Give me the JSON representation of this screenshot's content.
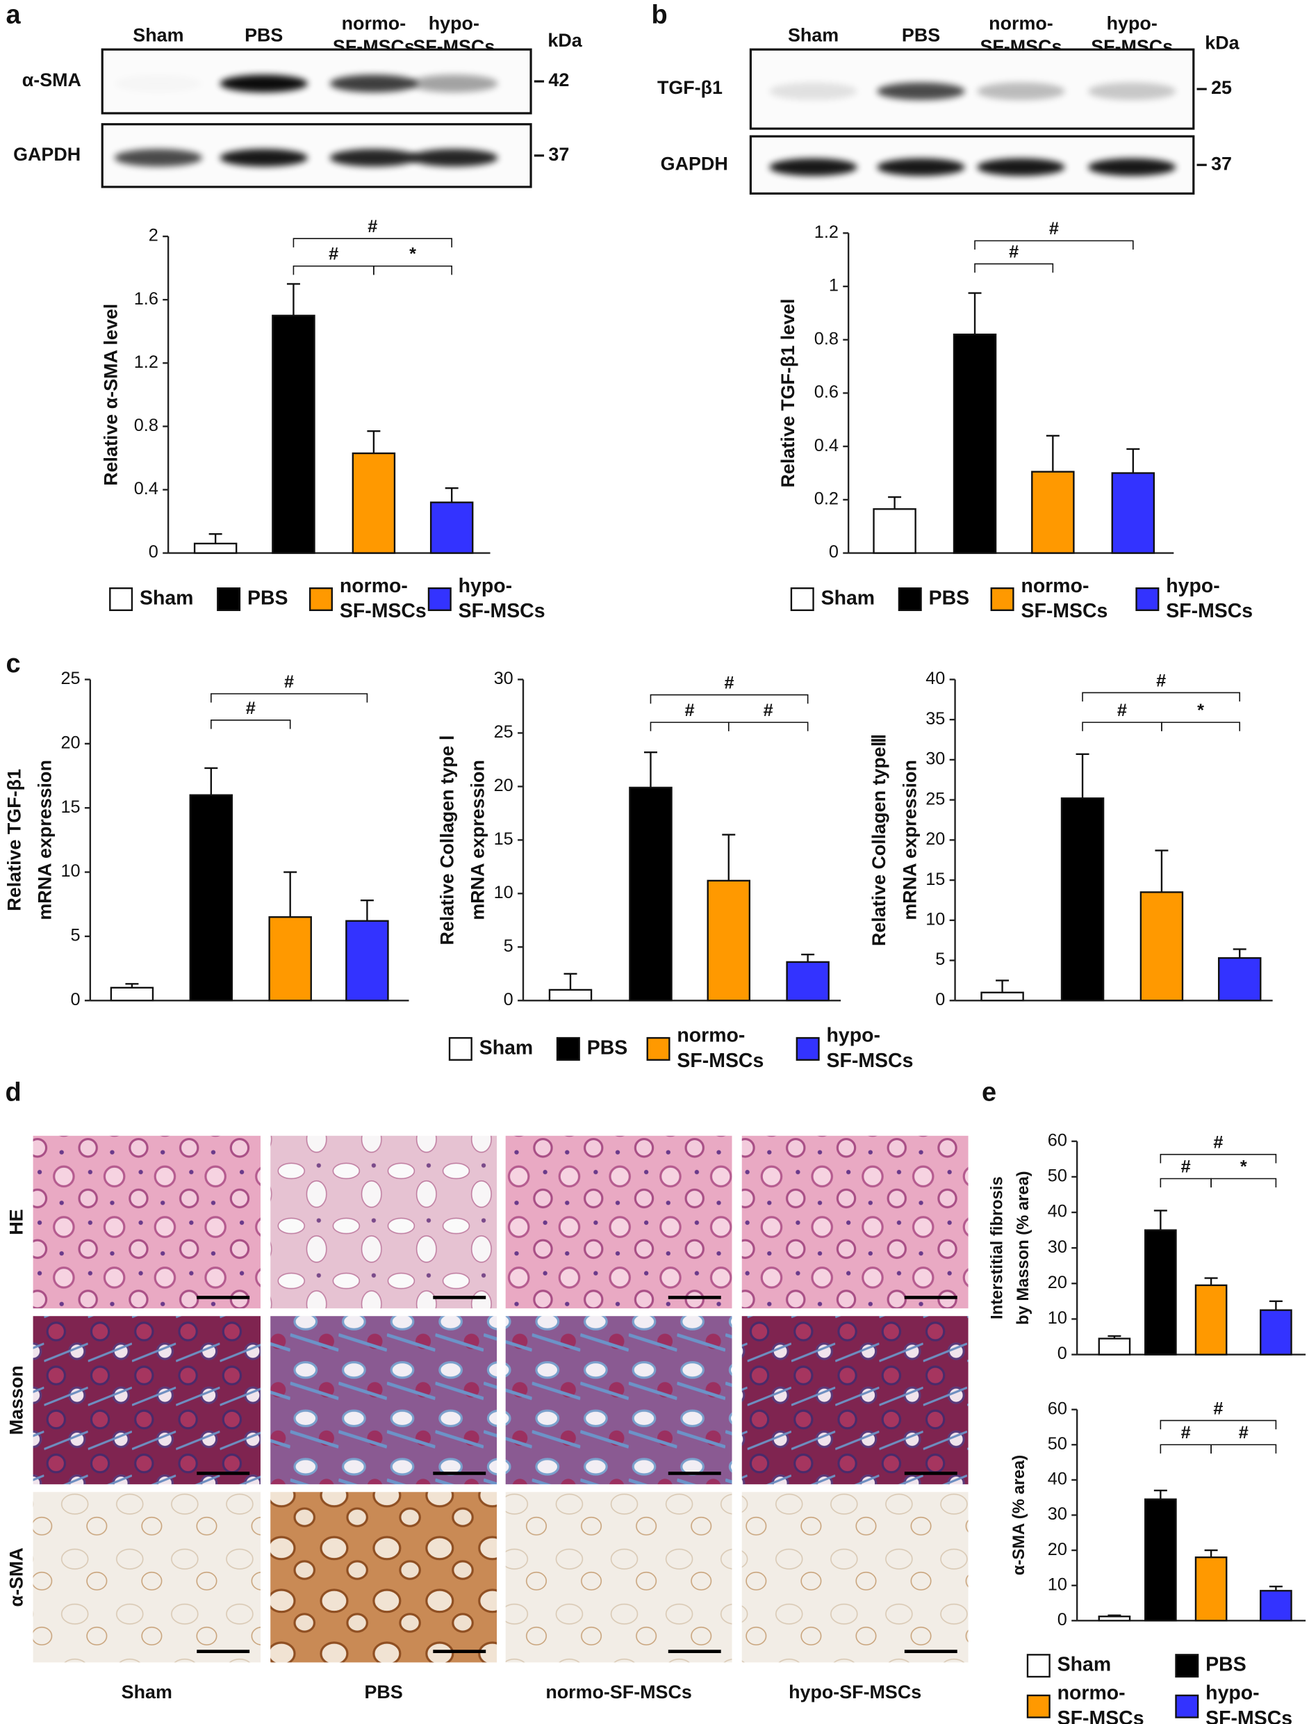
{
  "panel_labels": [
    "a",
    "b",
    "c",
    "d",
    "e"
  ],
  "blots": [
    {
      "lanes": [
        "Sham",
        "PBS",
        "normo-\nSF-MSCs",
        "hypo-\nSF-MSCs"
      ],
      "unit": "kDa",
      "rows": [
        {
          "label": "α-SMA",
          "size": 42
        },
        {
          "label": "GAPDH",
          "size": 37
        }
      ]
    },
    {
      "lanes": [
        "Sham",
        "PBS",
        "normo-\nSF-MSCs",
        "hypo-\nSF-MSCs"
      ],
      "unit": "kDa",
      "rows": [
        {
          "label": "TGF-β1",
          "size": 25
        },
        {
          "label": "GAPDH",
          "size": 37
        }
      ]
    }
  ],
  "histology": {
    "rows": [
      "HE",
      "Masson",
      "α-SMA"
    ],
    "columns": [
      "Sham",
      "PBS",
      "normo-SF-MSCs",
      "hypo-SF-MSCs"
    ]
  },
  "chart_data": [
    {
      "type": "bar",
      "ylabel": "Relative α-SMA level",
      "ylim": [
        0,
        2
      ],
      "yticks": [
        0,
        0.4,
        0.8,
        1.2,
        1.6,
        2
      ],
      "series": [
        {
          "name": "Sham",
          "color": "#ffffff",
          "values": [
            0.06
          ],
          "errors": [
            0.06
          ]
        },
        {
          "name": "PBS",
          "color": "#000000",
          "values": [
            1.5
          ],
          "errors": [
            0.2
          ]
        },
        {
          "name": "normo-\nSF-MSCs",
          "color": "#ff9900",
          "values": [
            0.63
          ],
          "errors": [
            0.14
          ]
        },
        {
          "name": "hypo-\nSF-MSCs",
          "color": "#3333ff",
          "values": [
            0.32
          ],
          "errors": [
            0.09
          ]
        }
      ],
      "annotations": [
        "#",
        "#",
        "*"
      ]
    },
    {
      "type": "bar",
      "ylabel": "Relative TGF-β1 level",
      "ylim": [
        0,
        1.2
      ],
      "yticks": [
        0,
        0.2,
        0.4,
        0.6,
        0.8,
        1,
        1.2
      ],
      "series": [
        {
          "name": "Sham",
          "color": "#ffffff",
          "values": [
            0.165
          ],
          "errors": [
            0.045
          ]
        },
        {
          "name": "PBS",
          "color": "#000000",
          "values": [
            0.82
          ],
          "errors": [
            0.155
          ]
        },
        {
          "name": "normo-\nSF-MSCs",
          "color": "#ff9900",
          "values": [
            0.305
          ],
          "errors": [
            0.135
          ]
        },
        {
          "name": "hypo-\nSF-MSCs",
          "color": "#3333ff",
          "values": [
            0.3
          ],
          "errors": [
            0.09
          ]
        }
      ],
      "annotations": [
        "#",
        "#"
      ]
    },
    {
      "type": "bar",
      "ylabel": "Relative TGF-β1\nmRNA expression",
      "ylim": [
        0,
        25
      ],
      "yticks": [
        0,
        5,
        10,
        15,
        20,
        25
      ],
      "series": [
        {
          "color": "#ffffff",
          "values": [
            1.0
          ],
          "errors": [
            0.3
          ]
        },
        {
          "color": "#000000",
          "values": [
            16.0
          ],
          "errors": [
            2.1
          ]
        },
        {
          "color": "#ff9900",
          "values": [
            6.5
          ],
          "errors": [
            3.5
          ]
        },
        {
          "color": "#3333ff",
          "values": [
            6.2
          ],
          "errors": [
            1.6
          ]
        }
      ],
      "annotations": [
        "#",
        "#"
      ]
    },
    {
      "type": "bar",
      "ylabel": "Relative Collagen type Ⅰ\nmRNA expression",
      "ylim": [
        0,
        30
      ],
      "yticks": [
        0,
        5,
        10,
        15,
        20,
        25,
        30
      ],
      "series": [
        {
          "name": "Sham",
          "color": "#ffffff",
          "values": [
            1.0
          ],
          "errors": [
            1.5
          ]
        },
        {
          "name": "PBS",
          "color": "#000000",
          "values": [
            19.9
          ],
          "errors": [
            3.3
          ]
        },
        {
          "name": "normo-\nSF-MSCs",
          "color": "#ff9900",
          "values": [
            11.2
          ],
          "errors": [
            4.3
          ]
        },
        {
          "name": "hypo-\nSF-MSCs",
          "color": "#3333ff",
          "values": [
            3.6
          ],
          "errors": [
            0.7
          ]
        }
      ],
      "annotations": [
        "#",
        "#",
        "#"
      ]
    },
    {
      "type": "bar",
      "ylabel": "Relative Collagen typeⅢ\nmRNA expression",
      "ylim": [
        0,
        40
      ],
      "yticks": [
        0,
        5,
        10,
        15,
        20,
        25,
        30,
        35,
        40
      ],
      "series": [
        {
          "color": "#ffffff",
          "values": [
            1.0
          ],
          "errors": [
            1.5
          ]
        },
        {
          "color": "#000000",
          "values": [
            25.2
          ],
          "errors": [
            5.5
          ]
        },
        {
          "color": "#ff9900",
          "values": [
            13.5
          ],
          "errors": [
            5.2
          ]
        },
        {
          "color": "#3333ff",
          "values": [
            5.3
          ],
          "errors": [
            1.1
          ]
        }
      ],
      "annotations": [
        "#",
        "#",
        "*"
      ]
    },
    {
      "type": "bar",
      "ylabel": "Interstitial fibrosis\nby Masson (% area)",
      "ylim": [
        0,
        60
      ],
      "yticks": [
        0,
        10,
        20,
        30,
        40,
        50,
        60
      ],
      "series": [
        {
          "color": "#ffffff",
          "values": [
            4.5
          ],
          "errors": [
            0.7
          ]
        },
        {
          "color": "#000000",
          "values": [
            35
          ],
          "errors": [
            5.5
          ]
        },
        {
          "color": "#ff9900",
          "values": [
            19.5
          ],
          "errors": [
            2
          ]
        },
        {
          "color": "#3333ff",
          "values": [
            12.5
          ],
          "errors": [
            2.5
          ]
        }
      ],
      "annotations": [
        "#",
        "#",
        "*"
      ]
    },
    {
      "type": "bar",
      "ylabel": "α-SMA (% area)",
      "ylim": [
        0,
        60
      ],
      "yticks": [
        0,
        10,
        20,
        30,
        40,
        50,
        60
      ],
      "series": [
        {
          "name": "Sham",
          "color": "#ffffff",
          "values": [
            1.2
          ],
          "errors": [
            0.3
          ]
        },
        {
          "name": "PBS",
          "color": "#000000",
          "values": [
            34.5
          ],
          "errors": [
            2.5
          ]
        },
        {
          "name": "normo-\nSF-MSCs",
          "color": "#ff9900",
          "values": [
            18
          ],
          "errors": [
            2
          ]
        },
        {
          "name": "hypo-\nSF-MSCs",
          "color": "#3333ff",
          "values": [
            8.5
          ],
          "errors": [
            1.2
          ]
        }
      ],
      "annotations": [
        "#",
        "#",
        "#"
      ]
    }
  ]
}
